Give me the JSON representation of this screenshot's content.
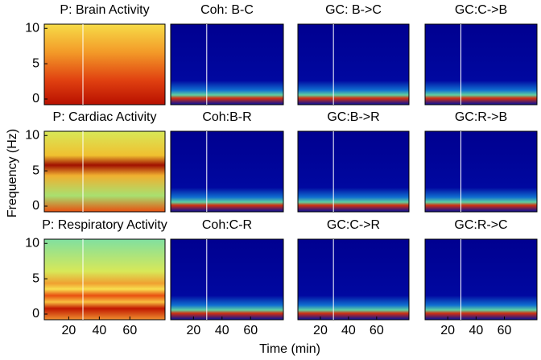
{
  "chart_data": {
    "type": "heatmap",
    "panels": [
      {
        "title": "P: Brain Activity"
      },
      {
        "title": "Coh: B-C"
      },
      {
        "title": "GC: B->C"
      },
      {
        "title": "GC:C->B"
      },
      {
        "title": "P: Cardiac Activity"
      },
      {
        "title": "Coh:B-R"
      },
      {
        "title": "GC:B->R"
      },
      {
        "title": "GC:R->B"
      },
      {
        "title": "P: Respiratory Activity"
      },
      {
        "title": "Coh:C-R"
      },
      {
        "title": "GC:C->R"
      },
      {
        "title": "GC:R->C"
      }
    ],
    "xlabel": "Time (min)",
    "ylabel": "Frequency (Hz)",
    "xlim": [
      4,
      83
    ],
    "xticks": [
      20,
      40,
      60
    ],
    "ylim": [
      -0.8,
      10.6
    ],
    "yticks": [
      0,
      5,
      10
    ]
  }
}
